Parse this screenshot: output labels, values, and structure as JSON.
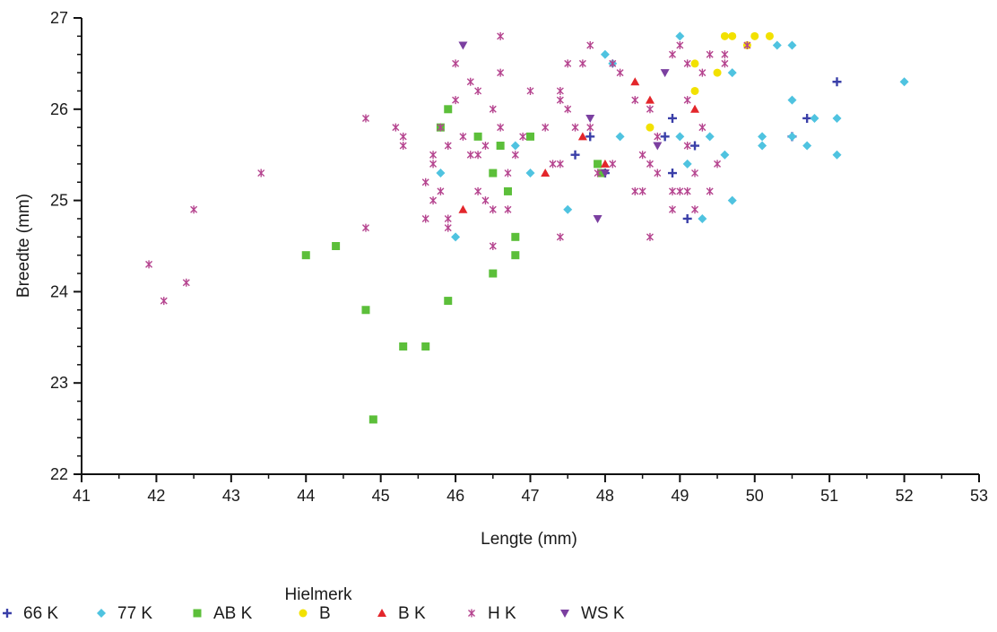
{
  "chart_data": {
    "type": "scatter",
    "xlabel": "Lengte (mm)",
    "ylabel": "Breedte (mm)",
    "xlim": [
      41,
      53
    ],
    "ylim": [
      22,
      27
    ],
    "xticks": [
      "41",
      "42",
      "43",
      "44",
      "45",
      "46",
      "47",
      "48",
      "49",
      "50",
      "51",
      "52",
      "53"
    ],
    "yticks": [
      "22",
      "23",
      "24",
      "25",
      "26",
      "27"
    ],
    "grid": false,
    "legend_title": "Hielmerk",
    "legend_position": "bottom",
    "series": [
      {
        "name": "66 K",
        "marker": "plus",
        "color": "#3a3fa8",
        "points": [
          [
            47.6,
            25.5
          ],
          [
            47.8,
            25.7
          ],
          [
            48.0,
            25.3
          ],
          [
            48.8,
            25.7
          ],
          [
            48.9,
            25.9
          ],
          [
            48.9,
            25.3
          ],
          [
            49.1,
            24.8
          ],
          [
            49.2,
            25.6
          ],
          [
            50.5,
            25.7
          ],
          [
            50.7,
            25.9
          ],
          [
            51.1,
            26.3
          ]
        ]
      },
      {
        "name": "77 K",
        "marker": "diamond",
        "color": "#4fc3e0",
        "points": [
          [
            45.8,
            25.3
          ],
          [
            46.0,
            24.6
          ],
          [
            46.8,
            25.6
          ],
          [
            47.0,
            25.3
          ],
          [
            47.5,
            24.9
          ],
          [
            48.0,
            26.6
          ],
          [
            48.1,
            26.5
          ],
          [
            48.2,
            25.7
          ],
          [
            49.0,
            26.8
          ],
          [
            49.0,
            25.7
          ],
          [
            49.1,
            25.4
          ],
          [
            49.3,
            24.8
          ],
          [
            49.4,
            25.7
          ],
          [
            49.6,
            25.5
          ],
          [
            49.7,
            26.4
          ],
          [
            49.7,
            25.0
          ],
          [
            50.1,
            25.7
          ],
          [
            50.1,
            25.6
          ],
          [
            50.3,
            26.7
          ],
          [
            50.5,
            26.7
          ],
          [
            50.5,
            26.1
          ],
          [
            50.5,
            25.7
          ],
          [
            50.7,
            25.6
          ],
          [
            50.8,
            25.9
          ],
          [
            51.1,
            25.9
          ],
          [
            51.1,
            25.5
          ],
          [
            52.0,
            26.3
          ]
        ]
      },
      {
        "name": "AB K",
        "marker": "square",
        "color": "#5cbf3a",
        "points": [
          [
            45.8,
            25.8
          ],
          [
            45.9,
            26.0
          ],
          [
            46.3,
            25.7
          ],
          [
            46.5,
            25.3
          ],
          [
            46.6,
            25.6
          ],
          [
            46.7,
            25.1
          ],
          [
            46.8,
            24.6
          ],
          [
            46.8,
            24.4
          ],
          [
            46.5,
            24.2
          ],
          [
            47.0,
            25.7
          ],
          [
            47.9,
            25.4
          ],
          [
            47.95,
            25.3
          ],
          [
            44.0,
            24.4
          ],
          [
            44.4,
            24.5
          ],
          [
            44.8,
            23.8
          ],
          [
            45.3,
            23.4
          ],
          [
            45.6,
            23.4
          ],
          [
            45.9,
            23.9
          ],
          [
            44.9,
            22.6
          ]
        ]
      },
      {
        "name": "B",
        "marker": "circle",
        "color": "#f2e100",
        "points": [
          [
            48.6,
            25.8
          ],
          [
            49.2,
            26.5
          ],
          [
            49.2,
            26.2
          ],
          [
            49.5,
            26.4
          ],
          [
            49.6,
            26.8
          ],
          [
            49.7,
            26.8
          ],
          [
            49.9,
            26.7
          ],
          [
            50.0,
            26.8
          ],
          [
            50.2,
            26.8
          ]
        ]
      },
      {
        "name": "B K",
        "marker": "triangle-up",
        "color": "#e3262b",
        "points": [
          [
            46.1,
            24.9
          ],
          [
            47.2,
            25.3
          ],
          [
            47.7,
            25.7
          ],
          [
            48.0,
            25.4
          ],
          [
            48.4,
            26.3
          ],
          [
            48.6,
            26.1
          ],
          [
            49.2,
            26.0
          ]
        ]
      },
      {
        "name": "H K",
        "marker": "asterisk",
        "color": "#b5448f",
        "points": [
          [
            41.9,
            24.3
          ],
          [
            42.1,
            23.9
          ],
          [
            42.4,
            24.1
          ],
          [
            42.5,
            24.9
          ],
          [
            43.4,
            25.3
          ],
          [
            44.8,
            25.9
          ],
          [
            44.8,
            24.7
          ],
          [
            45.2,
            25.8
          ],
          [
            45.3,
            25.7
          ],
          [
            45.3,
            25.6
          ],
          [
            45.6,
            24.8
          ],
          [
            45.6,
            25.2
          ],
          [
            45.7,
            25.5
          ],
          [
            45.7,
            25.4
          ],
          [
            45.7,
            25.0
          ],
          [
            45.8,
            25.1
          ],
          [
            45.8,
            25.8
          ],
          [
            45.9,
            25.6
          ],
          [
            45.9,
            24.8
          ],
          [
            45.9,
            24.7
          ],
          [
            46.0,
            26.5
          ],
          [
            46.0,
            26.1
          ],
          [
            46.1,
            25.7
          ],
          [
            46.2,
            26.3
          ],
          [
            46.2,
            25.5
          ],
          [
            46.3,
            26.2
          ],
          [
            46.3,
            25.5
          ],
          [
            46.3,
            25.1
          ],
          [
            46.4,
            25.0
          ],
          [
            46.4,
            25.6
          ],
          [
            46.5,
            26.0
          ],
          [
            46.5,
            24.9
          ],
          [
            46.5,
            24.5
          ],
          [
            46.6,
            25.8
          ],
          [
            46.6,
            26.4
          ],
          [
            46.6,
            26.8
          ],
          [
            46.7,
            25.3
          ],
          [
            46.7,
            24.9
          ],
          [
            46.8,
            25.5
          ],
          [
            46.9,
            25.7
          ],
          [
            47.0,
            26.2
          ],
          [
            47.2,
            25.8
          ],
          [
            47.3,
            25.4
          ],
          [
            47.4,
            26.2
          ],
          [
            47.4,
            26.1
          ],
          [
            47.4,
            25.4
          ],
          [
            47.4,
            24.6
          ],
          [
            47.5,
            26.5
          ],
          [
            47.5,
            26.0
          ],
          [
            47.6,
            25.8
          ],
          [
            47.7,
            26.5
          ],
          [
            47.8,
            26.7
          ],
          [
            47.8,
            25.8
          ],
          [
            47.9,
            25.3
          ],
          [
            48.1,
            26.5
          ],
          [
            48.1,
            25.4
          ],
          [
            48.2,
            26.4
          ],
          [
            48.4,
            25.1
          ],
          [
            48.4,
            26.1
          ],
          [
            48.5,
            25.5
          ],
          [
            48.5,
            25.1
          ],
          [
            48.6,
            26.0
          ],
          [
            48.6,
            25.4
          ],
          [
            48.6,
            24.6
          ],
          [
            48.7,
            25.7
          ],
          [
            48.7,
            25.3
          ],
          [
            48.9,
            26.6
          ],
          [
            48.9,
            25.1
          ],
          [
            48.9,
            24.9
          ],
          [
            49.0,
            26.7
          ],
          [
            49.0,
            25.1
          ],
          [
            49.1,
            26.5
          ],
          [
            49.1,
            26.1
          ],
          [
            49.1,
            25.1
          ],
          [
            49.1,
            25.6
          ],
          [
            49.2,
            25.3
          ],
          [
            49.2,
            24.9
          ],
          [
            49.3,
            25.8
          ],
          [
            49.3,
            26.4
          ],
          [
            49.4,
            25.1
          ],
          [
            49.4,
            26.6
          ],
          [
            49.5,
            25.4
          ],
          [
            49.6,
            26.6
          ],
          [
            49.6,
            26.5
          ],
          [
            49.9,
            26.7
          ]
        ]
      },
      {
        "name": "WS K",
        "marker": "triangle-down",
        "color": "#7b3fa0",
        "points": [
          [
            46.1,
            26.7
          ],
          [
            47.8,
            25.9
          ],
          [
            47.9,
            24.8
          ],
          [
            48.0,
            25.3
          ],
          [
            48.7,
            25.6
          ],
          [
            48.8,
            26.4
          ]
        ]
      }
    ]
  }
}
